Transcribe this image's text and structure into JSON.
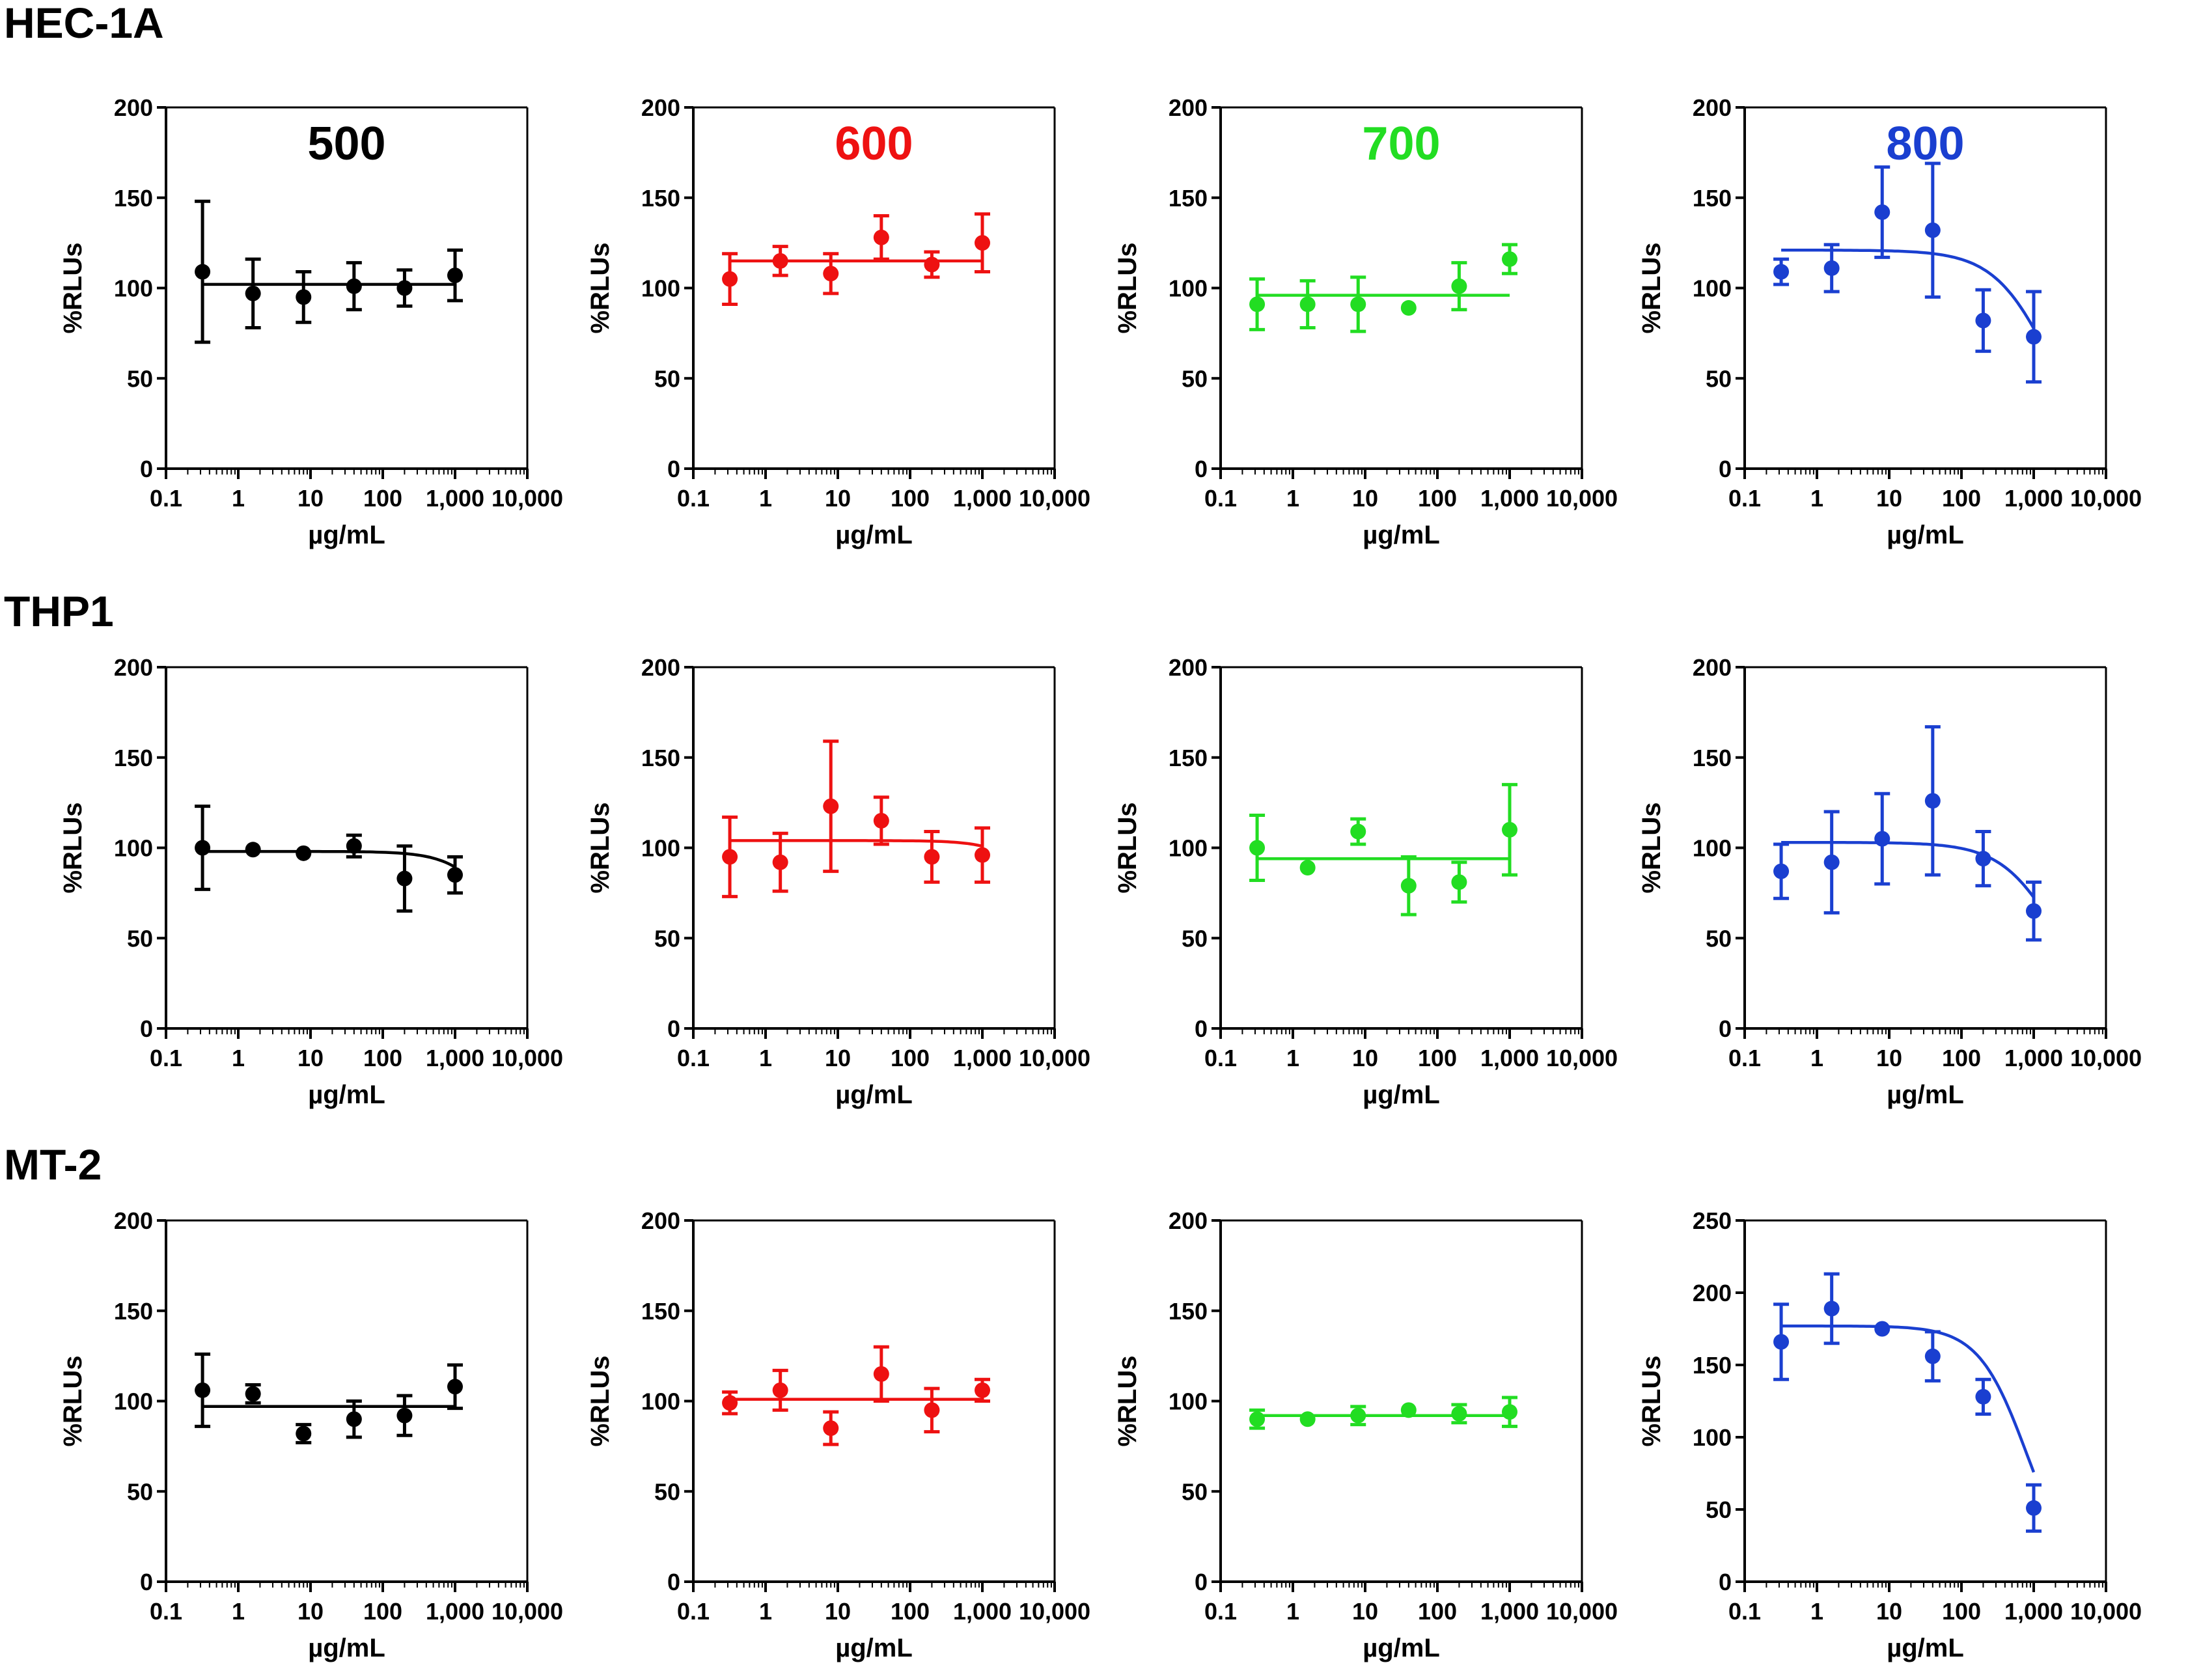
{
  "rows": [
    {
      "label": "HEC-1A"
    },
    {
      "label": "THP1"
    },
    {
      "label": "MT-2"
    }
  ],
  "colors": {
    "500": "#000000",
    "600": "#ee1111",
    "700": "#22dd22",
    "800": "#1a3fd0"
  },
  "chart_data": [
    {
      "type": "scatter",
      "row": "HEC-1A",
      "title": "500",
      "color": "#000000",
      "xscale": "log",
      "xlim": [
        0.1,
        10000
      ],
      "ylim": [
        0,
        200
      ],
      "yticks": [
        0,
        50,
        100,
        150,
        200
      ],
      "xticks": [
        "0.1",
        "1",
        "10",
        "100",
        "1,000",
        "10,000"
      ],
      "xlabel": "µg/mL",
      "ylabel": "%RLUs",
      "x": [
        0.32,
        1.6,
        8,
        40,
        200,
        1000
      ],
      "y": [
        109,
        97,
        95,
        101,
        100,
        107
      ],
      "err": [
        39,
        19,
        14,
        13,
        10,
        14
      ],
      "fit": {
        "kind": "flat",
        "top": 102
      }
    },
    {
      "type": "scatter",
      "row": "HEC-1A",
      "title": "600",
      "color": "#ee1111",
      "xscale": "log",
      "xlim": [
        0.1,
        10000
      ],
      "ylim": [
        0,
        200
      ],
      "yticks": [
        0,
        50,
        100,
        150,
        200
      ],
      "xticks": [
        "0.1",
        "1",
        "10",
        "100",
        "1,000",
        "10,000"
      ],
      "xlabel": "µg/mL",
      "ylabel": "%RLUs",
      "x": [
        0.32,
        1.6,
        8,
        40,
        200,
        1000
      ],
      "y": [
        105,
        115,
        108,
        128,
        113,
        125
      ],
      "err": [
        14,
        8,
        11,
        12,
        7,
        16
      ],
      "fit": {
        "kind": "flat",
        "top": 115
      }
    },
    {
      "type": "scatter",
      "row": "HEC-1A",
      "title": "700",
      "color": "#22dd22",
      "xscale": "log",
      "xlim": [
        0.1,
        10000
      ],
      "ylim": [
        0,
        200
      ],
      "yticks": [
        0,
        50,
        100,
        150,
        200
      ],
      "xticks": [
        "0.1",
        "1",
        "10",
        "100",
        "1,000",
        "10,000"
      ],
      "xlabel": "µg/mL",
      "ylabel": "%RLUs",
      "x": [
        0.32,
        1.6,
        8,
        40,
        200,
        1000
      ],
      "y": [
        91,
        91,
        91,
        89,
        101,
        116
      ],
      "err": [
        14,
        13,
        15,
        0,
        13,
        8
      ],
      "fit": {
        "kind": "flat",
        "top": 96
      }
    },
    {
      "type": "scatter",
      "row": "HEC-1A",
      "title": "800",
      "color": "#1a3fd0",
      "xscale": "log",
      "xlim": [
        0.1,
        10000
      ],
      "ylim": [
        0,
        200
      ],
      "yticks": [
        0,
        50,
        100,
        150,
        200
      ],
      "xticks": [
        "0.1",
        "1",
        "10",
        "100",
        "1,000",
        "10,000"
      ],
      "xlabel": "µg/mL",
      "ylabel": "%RLUs",
      "x": [
        0.32,
        1.6,
        8,
        40,
        200,
        1000
      ],
      "y": [
        109,
        111,
        142,
        132,
        82,
        73
      ],
      "err": [
        7,
        13,
        25,
        37,
        17,
        25
      ],
      "fit": {
        "kind": "sigmoid",
        "top": 121,
        "bottom": 0,
        "ec50": 1700,
        "hill": 1.1
      }
    },
    {
      "type": "scatter",
      "row": "THP1",
      "title": "",
      "color": "#000000",
      "xscale": "log",
      "xlim": [
        0.1,
        10000
      ],
      "ylim": [
        0,
        200
      ],
      "yticks": [
        0,
        50,
        100,
        150,
        200
      ],
      "xticks": [
        "0.1",
        "1",
        "10",
        "100",
        "1,000",
        "10,000"
      ],
      "xlabel": "µg/mL",
      "ylabel": "%RLUs",
      "x": [
        0.32,
        1.6,
        8,
        40,
        200,
        1000
      ],
      "y": [
        100,
        99,
        97,
        101,
        83,
        85
      ],
      "err": [
        23,
        0,
        0,
        6,
        18,
        10
      ],
      "fit": {
        "kind": "sigmoid",
        "top": 98,
        "bottom": 0,
        "ec50": 6000,
        "hill": 1.3
      }
    },
    {
      "type": "scatter",
      "row": "THP1",
      "title": "",
      "color": "#ee1111",
      "xscale": "log",
      "xlim": [
        0.1,
        10000
      ],
      "ylim": [
        0,
        200
      ],
      "yticks": [
        0,
        50,
        100,
        150,
        200
      ],
      "xticks": [
        "0.1",
        "1",
        "10",
        "100",
        "1,000",
        "10,000"
      ],
      "xlabel": "µg/mL",
      "ylabel": "%RLUs",
      "x": [
        0.32,
        1.6,
        8,
        40,
        200,
        1000
      ],
      "y": [
        95,
        92,
        123,
        115,
        95,
        96
      ],
      "err": [
        22,
        16,
        36,
        13,
        14,
        15
      ],
      "fit": {
        "kind": "sigmoid",
        "top": 104,
        "bottom": 0,
        "ec50": 12000,
        "hill": 1.4
      }
    },
    {
      "type": "scatter",
      "row": "THP1",
      "title": "",
      "color": "#22dd22",
      "xscale": "log",
      "xlim": [
        0.1,
        10000
      ],
      "ylim": [
        0,
        200
      ],
      "yticks": [
        0,
        50,
        100,
        150,
        200
      ],
      "xticks": [
        "0.1",
        "1",
        "10",
        "100",
        "1,000",
        "10,000"
      ],
      "xlabel": "µg/mL",
      "ylabel": "%RLUs",
      "x": [
        0.32,
        1.6,
        8,
        40,
        200,
        1000
      ],
      "y": [
        100,
        89,
        109,
        79,
        81,
        110
      ],
      "err": [
        18,
        0,
        7,
        16,
        11,
        25
      ],
      "fit": {
        "kind": "flat",
        "top": 94
      }
    },
    {
      "type": "scatter",
      "row": "THP1",
      "title": "",
      "color": "#1a3fd0",
      "xscale": "log",
      "xlim": [
        0.1,
        10000
      ],
      "ylim": [
        0,
        200
      ],
      "yticks": [
        0,
        50,
        100,
        150,
        200
      ],
      "xticks": [
        "0.1",
        "1",
        "10",
        "100",
        "1,000",
        "10,000"
      ],
      "xlabel": "µg/mL",
      "ylabel": "%RLUs",
      "x": [
        0.32,
        1.6,
        8,
        40,
        200,
        1000
      ],
      "y": [
        87,
        92,
        105,
        126,
        94,
        65
      ],
      "err": [
        15,
        28,
        25,
        41,
        15,
        16
      ],
      "fit": {
        "kind": "sigmoid",
        "top": 103,
        "bottom": 0,
        "ec50": 2200,
        "hill": 1.1
      }
    },
    {
      "type": "scatter",
      "row": "MT-2",
      "title": "",
      "color": "#000000",
      "xscale": "log",
      "xlim": [
        0.1,
        10000
      ],
      "ylim": [
        0,
        200
      ],
      "yticks": [
        0,
        50,
        100,
        150,
        200
      ],
      "xticks": [
        "0.1",
        "1",
        "10",
        "100",
        "1,000",
        "10,000"
      ],
      "xlabel": "µg/mL",
      "ylabel": "%RLUs",
      "x": [
        0.32,
        1.6,
        8,
        40,
        200,
        1000
      ],
      "y": [
        106,
        104,
        82,
        90,
        92,
        108
      ],
      "err": [
        20,
        5,
        5,
        10,
        11,
        12
      ],
      "fit": {
        "kind": "flat",
        "top": 97
      }
    },
    {
      "type": "scatter",
      "row": "MT-2",
      "title": "",
      "color": "#ee1111",
      "xscale": "log",
      "xlim": [
        0.1,
        10000
      ],
      "ylim": [
        0,
        200
      ],
      "yticks": [
        0,
        50,
        100,
        150,
        200
      ],
      "xticks": [
        "0.1",
        "1",
        "10",
        "100",
        "1,000",
        "10,000"
      ],
      "xlabel": "µg/mL",
      "ylabel": "%RLUs",
      "x": [
        0.32,
        1.6,
        8,
        40,
        200,
        1000
      ],
      "y": [
        99,
        106,
        85,
        115,
        95,
        106
      ],
      "err": [
        6,
        11,
        9,
        15,
        12,
        6
      ],
      "fit": {
        "kind": "flat",
        "top": 101
      }
    },
    {
      "type": "scatter",
      "row": "MT-2",
      "title": "",
      "color": "#22dd22",
      "xscale": "log",
      "xlim": [
        0.1,
        10000
      ],
      "ylim": [
        0,
        200
      ],
      "yticks": [
        0,
        50,
        100,
        150,
        200
      ],
      "xticks": [
        "0.1",
        "1",
        "10",
        "100",
        "1,000",
        "10,000"
      ],
      "xlabel": "µg/mL",
      "ylabel": "%RLUs",
      "x": [
        0.32,
        1.6,
        8,
        40,
        200,
        1000
      ],
      "y": [
        90,
        90,
        92,
        95,
        93,
        94
      ],
      "err": [
        5,
        0,
        5,
        0,
        5,
        8
      ],
      "fit": {
        "kind": "flat",
        "top": 92
      }
    },
    {
      "type": "scatter",
      "row": "MT-2",
      "title": "",
      "color": "#1a3fd0",
      "xscale": "log",
      "xlim": [
        0.1,
        10000
      ],
      "ylim": [
        0,
        250
      ],
      "yticks": [
        0,
        50,
        100,
        150,
        200,
        250
      ],
      "xticks": [
        "0.1",
        "1",
        "10",
        "100",
        "1,000",
        "10,000"
      ],
      "xlabel": "µg/mL",
      "ylabel": "%RLUs",
      "x": [
        0.32,
        1.6,
        8,
        40,
        200,
        1000
      ],
      "y": [
        166,
        189,
        175,
        156,
        128,
        51
      ],
      "err": [
        26,
        24,
        0,
        17,
        12,
        16
      ],
      "fit": {
        "kind": "sigmoid",
        "top": 177,
        "bottom": 0,
        "ec50": 800,
        "hill": 1.3
      }
    }
  ]
}
